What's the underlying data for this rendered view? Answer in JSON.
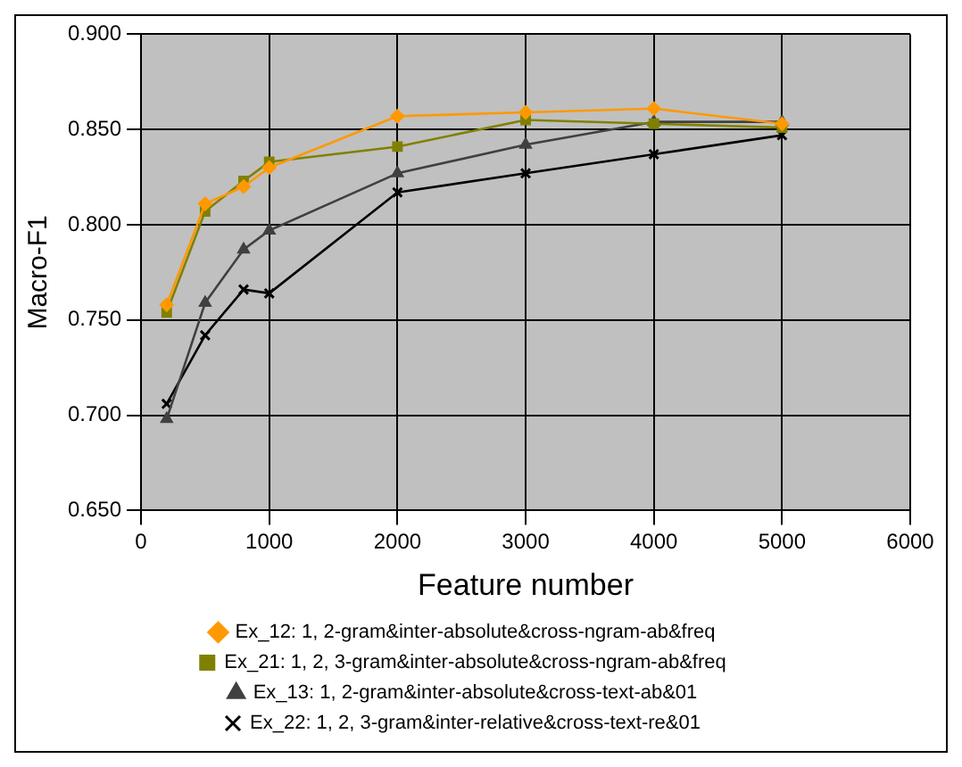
{
  "chart_data": {
    "type": "line",
    "xlabel": "Feature number",
    "ylabel": "Macro-F1",
    "xlim": [
      0,
      6000
    ],
    "xticks": [
      0,
      1000,
      2000,
      3000,
      4000,
      5000,
      6000
    ],
    "ylim": [
      0.65,
      0.9
    ],
    "yticks": [
      {
        "value": 0.65,
        "label": "0.650"
      },
      {
        "value": 0.7,
        "label": "0.700"
      },
      {
        "value": 0.75,
        "label": "0.750"
      },
      {
        "value": 0.8,
        "label": "0.800"
      },
      {
        "value": 0.85,
        "label": "0.850"
      },
      {
        "value": 0.9,
        "label": "0.900"
      }
    ],
    "grid": true,
    "legend": "bottom",
    "line_style": "solid",
    "x": [
      200,
      500,
      800,
      1000,
      2000,
      3000,
      4000,
      5000
    ],
    "series": [
      {
        "name": "Ex_12: 1, 2-gram&inter-absolute&cross-ngram-ab&freq",
        "color": "#ff9900",
        "marker": "diamond",
        "values": [
          0.758,
          0.811,
          0.82,
          0.83,
          0.857,
          0.859,
          0.861,
          0.853
        ]
      },
      {
        "name": "Ex_21: 1, 2, 3-gram&inter-absolute&cross-ngram-ab&freq",
        "color": "#808000",
        "marker": "square",
        "values": [
          0.754,
          0.807,
          0.823,
          0.833,
          0.841,
          0.855,
          0.853,
          0.851
        ]
      },
      {
        "name": "Ex_13: 1, 2-gram&inter-absolute&cross-text-ab&01",
        "color": "#404040",
        "marker": "triangle",
        "values": [
          0.698,
          0.759,
          0.787,
          0.797,
          0.827,
          0.842,
          0.854,
          0.854
        ]
      },
      {
        "name": "Ex_22: 1, 2, 3-gram&inter-relative&cross-text-re&01",
        "color": "#000000",
        "marker": "cross",
        "values": [
          0.706,
          0.742,
          0.766,
          0.764,
          0.817,
          0.827,
          0.837,
          0.847
        ]
      }
    ]
  }
}
